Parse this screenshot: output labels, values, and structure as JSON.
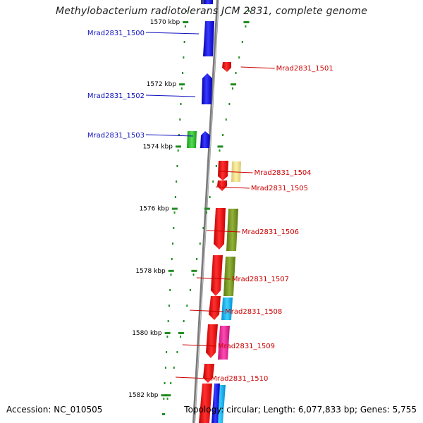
{
  "title": "Methylobacterium radiotolerans JCM 2831, complete genome",
  "footer": {
    "accession_label": "Accession:",
    "accession": "NC_010505",
    "topology_label": "Topology:",
    "topology": "circular;",
    "length_label": "Length:",
    "length": "6,077,833 bp;",
    "genes_label": "Genes:",
    "genes": "5,755"
  },
  "colors": {
    "left_strand": "#0000dd",
    "right_strand": "#ee0000",
    "label_left": "#1010c0",
    "label_right": "#cc0000",
    "tick": "#228b22",
    "backbone": "#888888"
  },
  "chart_data": {
    "type": "genome-map",
    "units": "kbp",
    "ticks": [
      {
        "kbp": 1570,
        "label": "1570 kbp"
      },
      {
        "kbp": 1572,
        "label": "1572 kbp"
      },
      {
        "kbp": 1574,
        "label": "1574 kbp"
      },
      {
        "kbp": 1576,
        "label": "1576 kbp"
      },
      {
        "kbp": 1578,
        "label": "1578 kbp"
      },
      {
        "kbp": 1580,
        "label": "1580 kbp"
      },
      {
        "kbp": 1582,
        "label": "1582 kbp"
      }
    ],
    "genes": [
      {
        "name": "Mrad2831_1500",
        "strand": "-",
        "start": 1569.8,
        "end": 1570.9,
        "color": "#0000ee"
      },
      {
        "name": "Mrad2831_1501",
        "strand": "+",
        "start": 1571.2,
        "end": 1571.5,
        "color": "#ee0000"
      },
      {
        "name": "Mrad2831_1502",
        "strand": "-",
        "start": 1571.6,
        "end": 1573.2,
        "color": "#0000ee"
      },
      {
        "name": "Mrad2831_1503",
        "strand": "-",
        "start": 1573.3,
        "end": 1573.85,
        "color": "#0000ee"
      },
      {
        "name": "Mrad2831_1504",
        "strand": "+",
        "start": 1574.5,
        "end": 1575.1,
        "color": "#ee0000"
      },
      {
        "name": "Mrad2831_1505",
        "strand": "+",
        "start": 1575.1,
        "end": 1575.45,
        "color": "#ee0000"
      },
      {
        "name": "Mrad2831_1506",
        "strand": "+",
        "start": 1576.0,
        "end": 1577.4,
        "color": "#ee0000"
      },
      {
        "name": "Mrad2831_1507",
        "strand": "+",
        "start": 1577.6,
        "end": 1578.9,
        "color": "#ee0000"
      },
      {
        "name": "Mrad2831_1508",
        "strand": "+",
        "start": 1578.9,
        "end": 1579.6,
        "color": "#ee0000"
      },
      {
        "name": "Mrad2831_1509",
        "strand": "+",
        "start": 1579.8,
        "end": 1580.9,
        "color": "#ee0000"
      },
      {
        "name": "Mrad2831_1510",
        "strand": "+",
        "start": 1581.1,
        "end": 1581.7,
        "color": "#ee0000"
      }
    ]
  }
}
